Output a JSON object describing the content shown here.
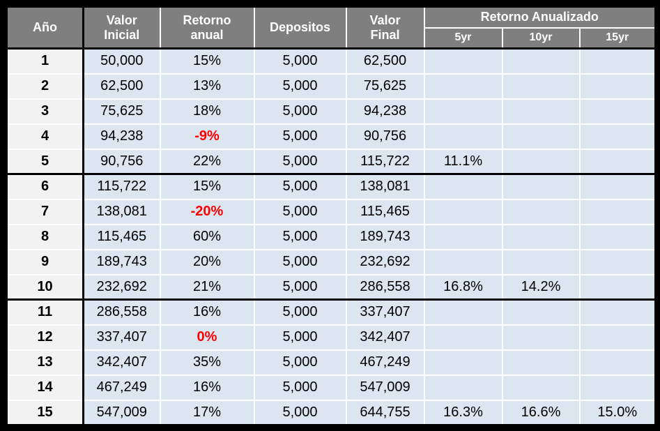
{
  "colors": {
    "header_bg": "#7f7f7f",
    "header_text": "#ffffff",
    "cell_bg": "#dce6f1",
    "year_col_bg": "#f2f2f2",
    "negative_return_text": "#ff0000",
    "grid_line": "#ffffff",
    "frame_border": "#000000"
  },
  "chart_data": {
    "type": "table",
    "title": "",
    "header": {
      "year": "Año",
      "initial_value": "Valor\nInicial",
      "annual_return": "Retorno\nanual",
      "deposits": "Depositos",
      "final_value": "Valor\nFinal",
      "annualized_return_group": "Retorno Anualizado",
      "sub_5yr": "5yr",
      "sub_10yr": "10yr",
      "sub_15yr": "15yr"
    },
    "columns": [
      "Año",
      "Valor Inicial",
      "Retorno anual",
      "Depositos",
      "Valor Final",
      "Retorno Anualizado 5yr",
      "Retorno Anualizado 10yr",
      "Retorno Anualizado 15yr"
    ],
    "rows": [
      {
        "year": "1",
        "initial": "50,000",
        "annual_return": "15%",
        "red": false,
        "deposit": "5,000",
        "final": "62,500",
        "r5": "",
        "r10": "",
        "r15": ""
      },
      {
        "year": "2",
        "initial": "62,500",
        "annual_return": "13%",
        "red": false,
        "deposit": "5,000",
        "final": "75,625",
        "r5": "",
        "r10": "",
        "r15": ""
      },
      {
        "year": "3",
        "initial": "75,625",
        "annual_return": "18%",
        "red": false,
        "deposit": "5,000",
        "final": "94,238",
        "r5": "",
        "r10": "",
        "r15": ""
      },
      {
        "year": "4",
        "initial": "94,238",
        "annual_return": "-9%",
        "red": true,
        "deposit": "5,000",
        "final": "90,756",
        "r5": "",
        "r10": "",
        "r15": ""
      },
      {
        "year": "5",
        "initial": "90,756",
        "annual_return": "22%",
        "red": false,
        "deposit": "5,000",
        "final": "115,722",
        "r5": "11.1%",
        "r10": "",
        "r15": ""
      },
      {
        "year": "6",
        "initial": "115,722",
        "annual_return": "15%",
        "red": false,
        "deposit": "5,000",
        "final": "138,081",
        "r5": "",
        "r10": "",
        "r15": ""
      },
      {
        "year": "7",
        "initial": "138,081",
        "annual_return": "-20%",
        "red": true,
        "deposit": "5,000",
        "final": "115,465",
        "r5": "",
        "r10": "",
        "r15": ""
      },
      {
        "year": "8",
        "initial": "115,465",
        "annual_return": "60%",
        "red": false,
        "deposit": "5,000",
        "final": "189,743",
        "r5": "",
        "r10": "",
        "r15": ""
      },
      {
        "year": "9",
        "initial": "189,743",
        "annual_return": "20%",
        "red": false,
        "deposit": "5,000",
        "final": "232,692",
        "r5": "",
        "r10": "",
        "r15": ""
      },
      {
        "year": "10",
        "initial": "232,692",
        "annual_return": "21%",
        "red": false,
        "deposit": "5,000",
        "final": "286,558",
        "r5": "16.8%",
        "r10": "14.2%",
        "r15": ""
      },
      {
        "year": "11",
        "initial": "286,558",
        "annual_return": "16%",
        "red": false,
        "deposit": "5,000",
        "final": "337,407",
        "r5": "",
        "r10": "",
        "r15": ""
      },
      {
        "year": "12",
        "initial": "337,407",
        "annual_return": "0%",
        "red": true,
        "deposit": "5,000",
        "final": "342,407",
        "r5": "",
        "r10": "",
        "r15": ""
      },
      {
        "year": "13",
        "initial": "342,407",
        "annual_return": "35%",
        "red": false,
        "deposit": "5,000",
        "final": "467,249",
        "r5": "",
        "r10": "",
        "r15": ""
      },
      {
        "year": "14",
        "initial": "467,249",
        "annual_return": "16%",
        "red": false,
        "deposit": "5,000",
        "final": "547,009",
        "r5": "",
        "r10": "",
        "r15": ""
      },
      {
        "year": "15",
        "initial": "547,009",
        "annual_return": "17%",
        "red": false,
        "deposit": "5,000",
        "final": "644,755",
        "r5": "16.3%",
        "r10": "16.6%",
        "r15": "15.0%"
      }
    ]
  }
}
